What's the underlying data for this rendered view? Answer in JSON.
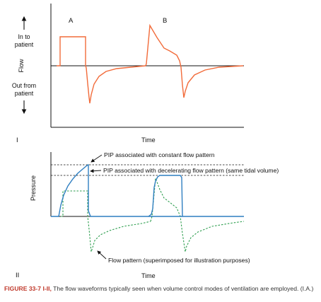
{
  "panel1": {
    "roman": "I",
    "label_a": "A",
    "label_b": "B",
    "ylabel": "Flow",
    "up_label_1": "In to",
    "up_label_2": "patient",
    "down_label_1": "Out from",
    "down_label_2": "patient",
    "xlabel": "Time",
    "color": "#f26b3a"
  },
  "panel2": {
    "roman": "II",
    "ylabel": "Pressure",
    "xlabel": "Time",
    "ann_pip_constant": "PIP associated with constant flow pattern",
    "ann_pip_decel": "PIP associated with decelerating flow pattern (same tidal volume)",
    "ann_flow": "Flow pattern (superimposed for illustration purposes)",
    "pressure_color": "#2f7fc1",
    "flow_color": "#2e9e4f"
  },
  "caption": {
    "label": "FIGURE 33-7",
    "panels": "I-II,",
    "text": "The flow waveforms typically seen when volume control modes of ventilation are employed. (I.A.)"
  }
}
